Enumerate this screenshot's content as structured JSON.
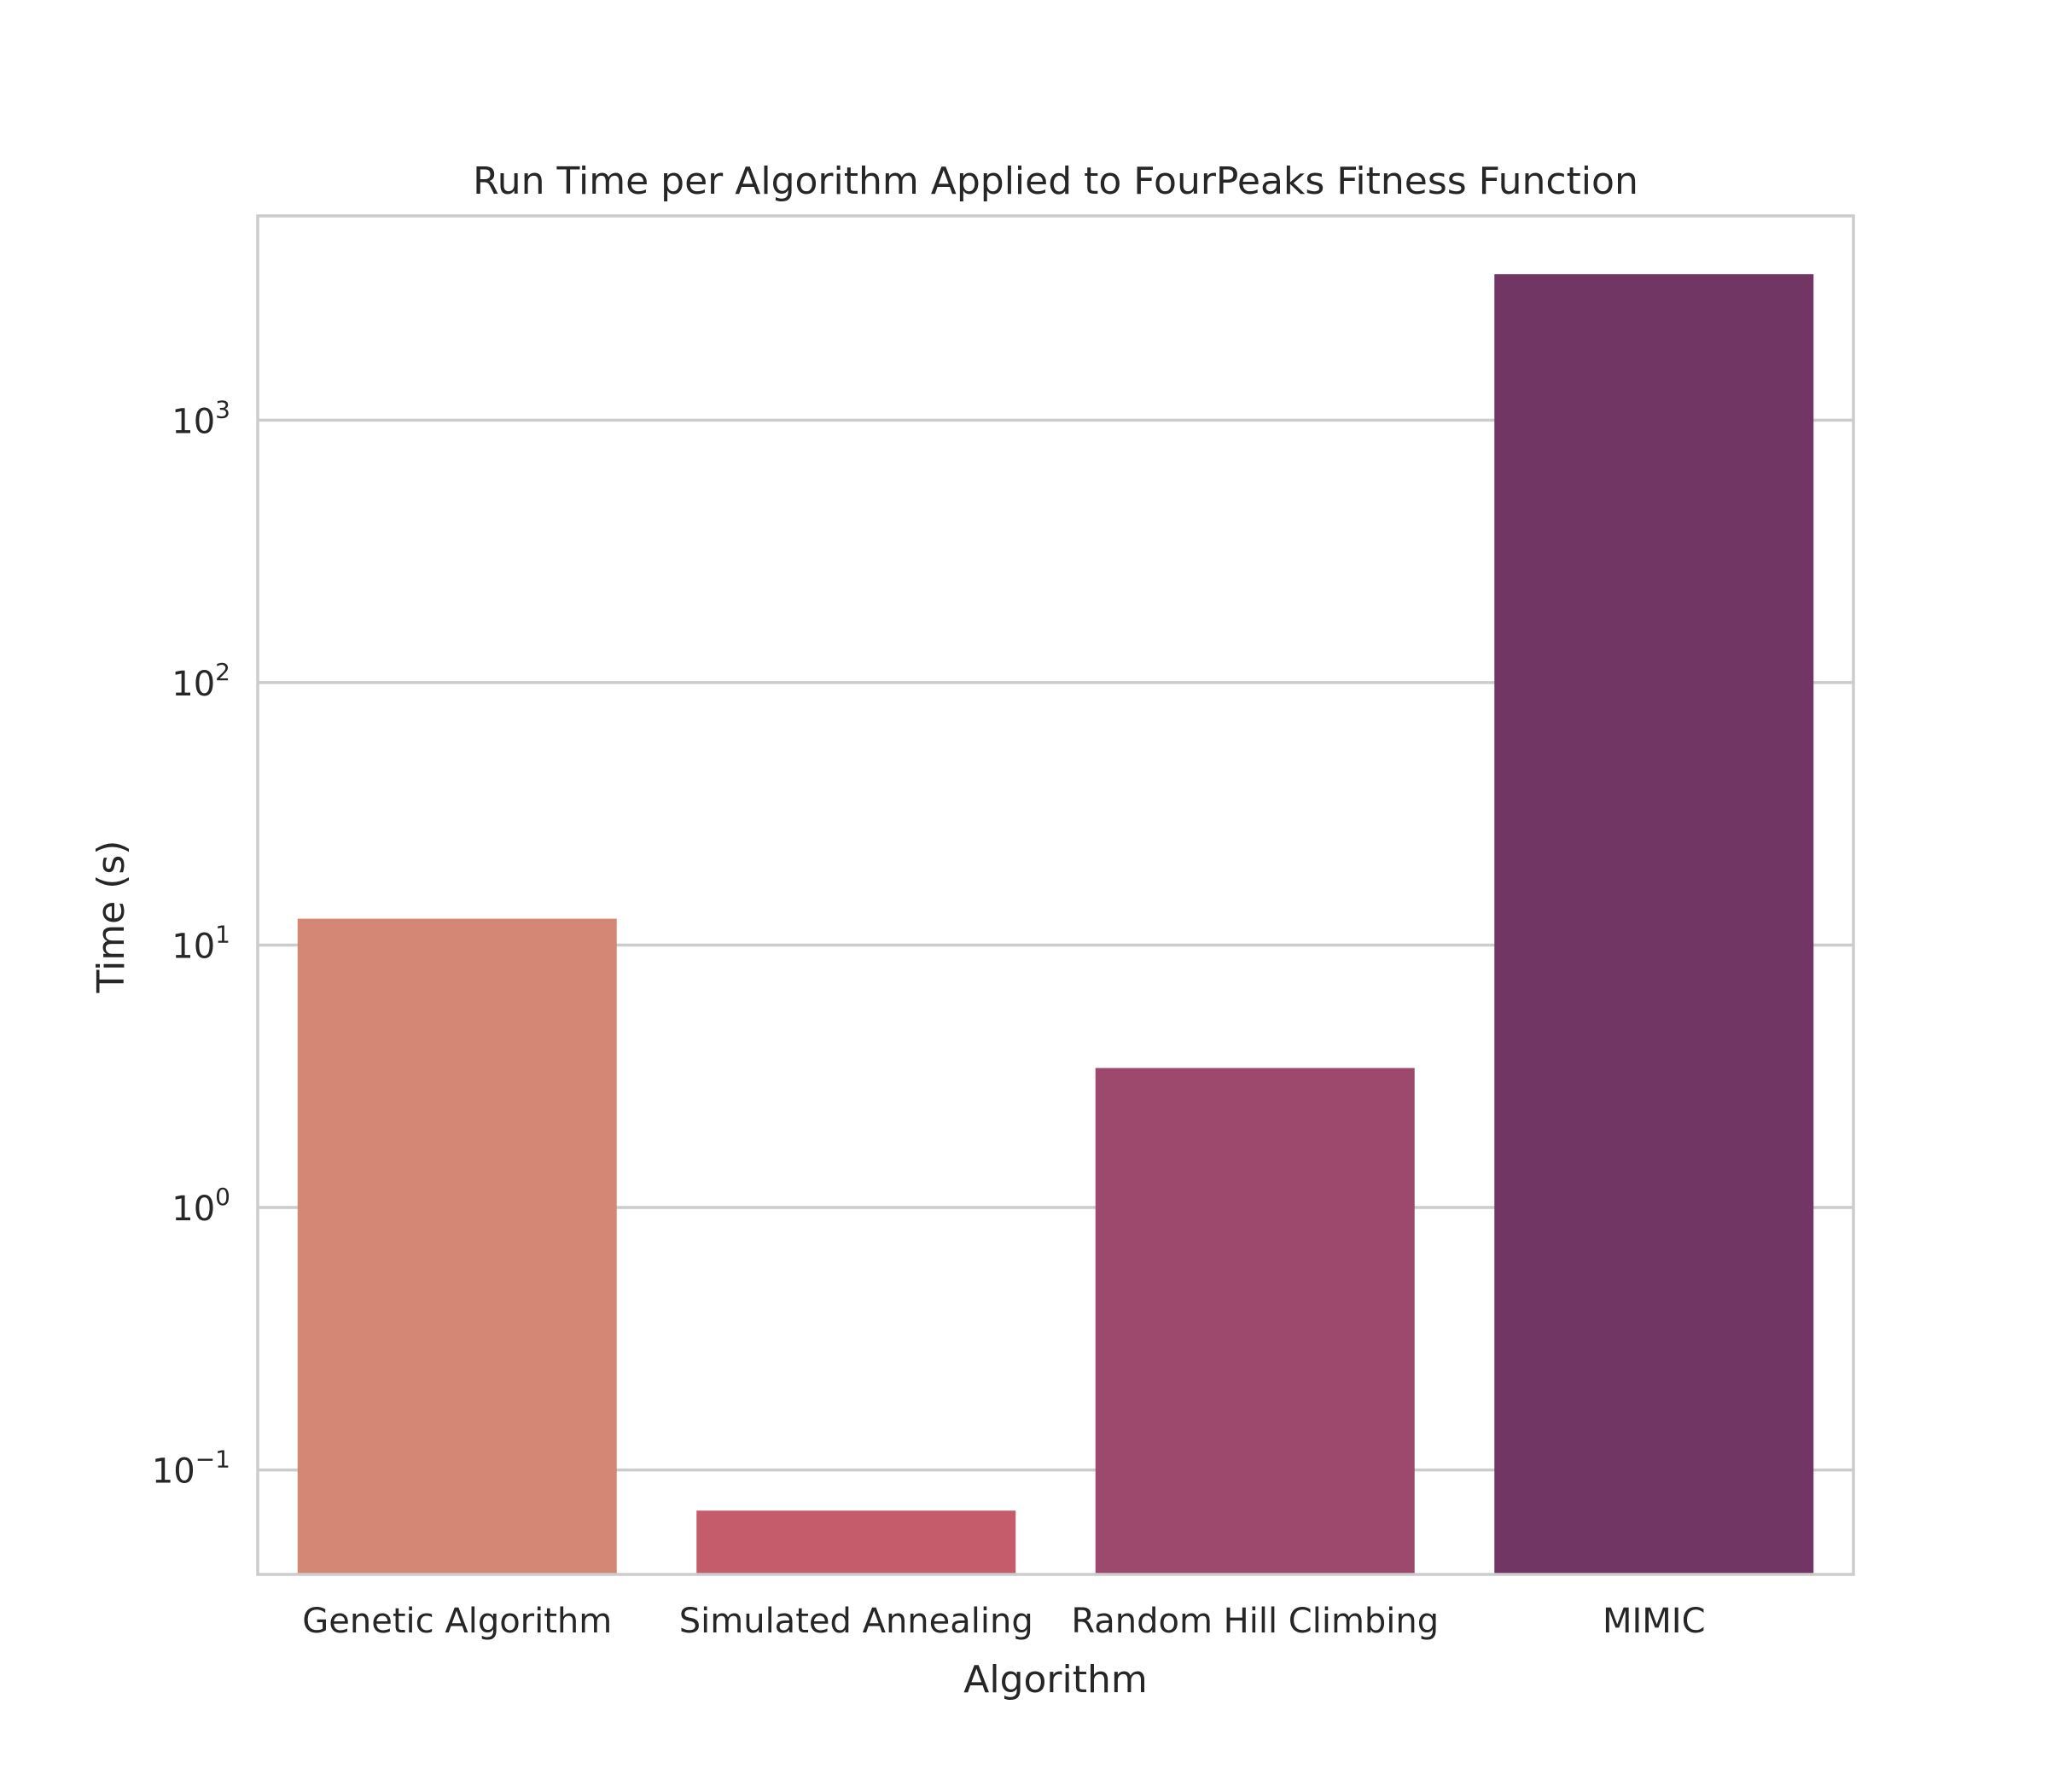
{
  "chart_data": {
    "type": "bar",
    "title": "Run Time per Algorithm Applied to FourPeaks Fitness Function",
    "xlabel": "Algorithm",
    "ylabel": "Time (s)",
    "yscale": "log",
    "ylim": [
      0.04,
      6000
    ],
    "yticks": [
      {
        "value": 0.1,
        "base": "10",
        "exp": "−1"
      },
      {
        "value": 1,
        "base": "10",
        "exp": "0"
      },
      {
        "value": 10,
        "base": "10",
        "exp": "1"
      },
      {
        "value": 100,
        "base": "10",
        "exp": "2"
      },
      {
        "value": 1000,
        "base": "10",
        "exp": "3"
      }
    ],
    "grid": true,
    "categories": [
      "Genetic Algorithm",
      "Simulated Annealing",
      "Random Hill Climbing",
      "MIMIC"
    ],
    "values": [
      12.6,
      0.07,
      3.4,
      3600
    ],
    "colors": [
      "#d58775",
      "#c55c6c",
      "#9c496d",
      "#713664"
    ]
  }
}
